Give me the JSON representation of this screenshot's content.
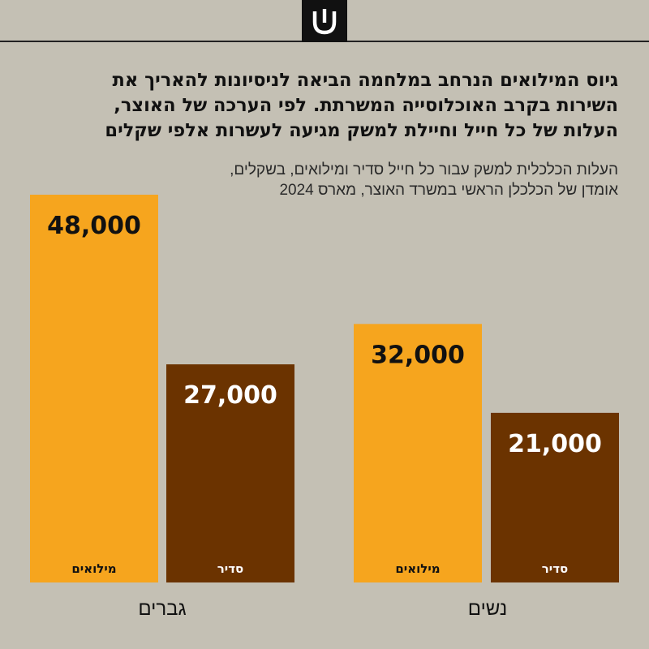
{
  "logo": {
    "icon": "shin-letter-icon"
  },
  "headline": {
    "lines": [
      "גיוס המילואים הנרחב במלחמה הביאה לניסיונות להאריך את",
      "השירות בקרב האוכלוסייה המשרתת. לפי הערכה של האוצר,",
      "העלות של כל חייל וחיילת למשק מגיעה לעשרות אלפי שקלים"
    ]
  },
  "subtitle": {
    "lines": [
      "העלות הכלכלית למשק עבור כל חייל סדיר ומילואים, בשקלים,",
      "אומדן של הכלכלן הראשי במשרד האוצר, מארס 2024"
    ]
  },
  "colors": {
    "reserve": "#f6a51e",
    "regular": "#6b3300",
    "background": "#c4c0b4"
  },
  "chart_data": {
    "type": "bar",
    "title": "העלות הכלכלית למשק עבור כל חייל סדיר ומילואים, בשקלים",
    "categories": [
      "גברים",
      "נשים"
    ],
    "series": [
      {
        "name": "מילואים",
        "values": [
          48000,
          32000
        ]
      },
      {
        "name": "סדיר",
        "values": [
          27000,
          21000
        ]
      }
    ],
    "ylim": [
      0,
      50000
    ],
    "value_labels": [
      [
        "48,000",
        "32,000"
      ],
      [
        "27,000",
        "21,000"
      ]
    ],
    "grid": false
  }
}
